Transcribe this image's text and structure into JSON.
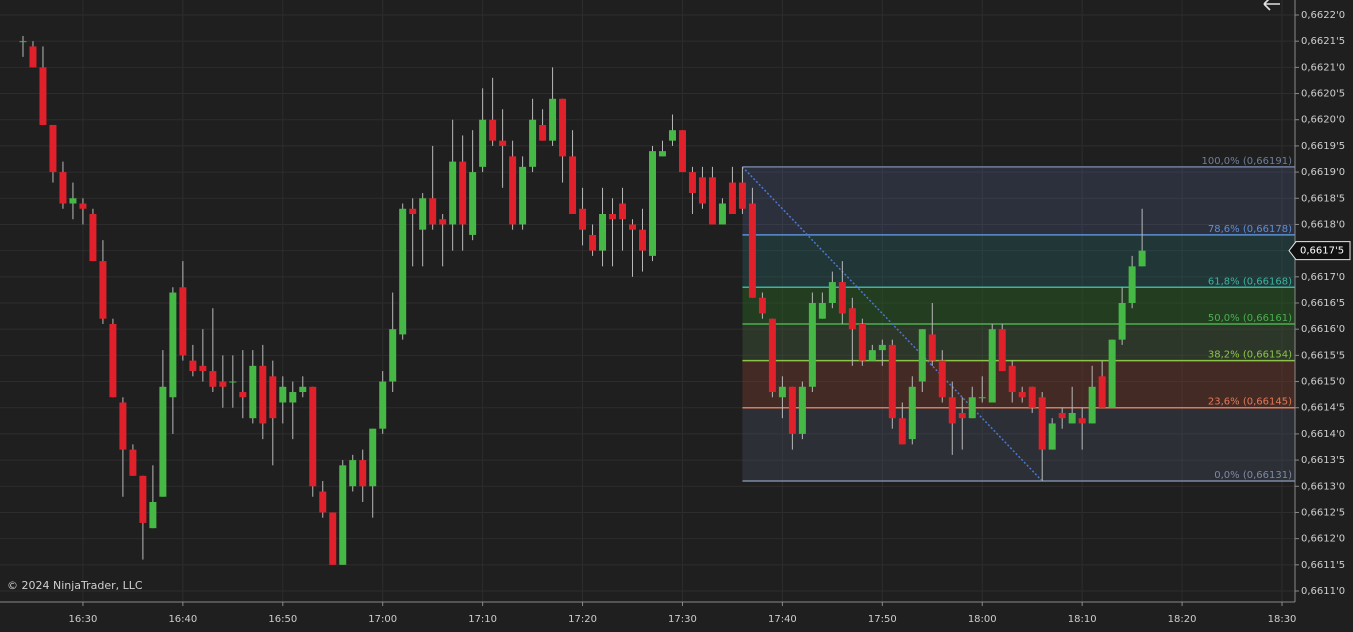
{
  "chart_data": {
    "type": "candlestick",
    "credit": "© 2024 NinjaTrader, LLC",
    "up_color": "#45b845",
    "down_color": "#e0202a",
    "wick_color": "#b8b8b8",
    "grid": true,
    "xlim": [
      "16:22",
      "18:31"
    ],
    "xticks": [
      "16:30",
      "16:40",
      "16:50",
      "17:00",
      "17:10",
      "17:20",
      "17:30",
      "17:40",
      "17:50",
      "18:00",
      "18:10",
      "18:20",
      "18:30"
    ],
    "ylim": [
      0.6611,
      0.6622
    ],
    "yticks": [
      {
        "value": 0.6611,
        "label": "0,6611'0"
      },
      {
        "value": 0.66115,
        "label": "0,6611'5"
      },
      {
        "value": 0.6612,
        "label": "0,6612'0"
      },
      {
        "value": 0.66125,
        "label": "0,6612'5"
      },
      {
        "value": 0.6613,
        "label": "0,6613'0"
      },
      {
        "value": 0.66135,
        "label": "0,6613'5"
      },
      {
        "value": 0.6614,
        "label": "0,6614'0"
      },
      {
        "value": 0.66145,
        "label": "0,6614'5"
      },
      {
        "value": 0.6615,
        "label": "0,6615'0"
      },
      {
        "value": 0.66155,
        "label": "0,6615'5"
      },
      {
        "value": 0.6616,
        "label": "0,6616'0"
      },
      {
        "value": 0.66165,
        "label": "0,6616'5"
      },
      {
        "value": 0.6617,
        "label": "0,6617'0"
      },
      {
        "value": 0.66175,
        "label": "0,6617'5"
      },
      {
        "value": 0.6618,
        "label": "0,6618'0"
      },
      {
        "value": 0.66185,
        "label": "0,6618'5"
      },
      {
        "value": 0.6619,
        "label": "0,6619'0"
      },
      {
        "value": 0.66195,
        "label": "0,6619'5"
      },
      {
        "value": 0.662,
        "label": "0,6620'0"
      },
      {
        "value": 0.66205,
        "label": "0,6620'5"
      },
      {
        "value": 0.6621,
        "label": "0,6621'0"
      },
      {
        "value": 0.66215,
        "label": "0,6621'5"
      },
      {
        "value": 0.6622,
        "label": "0,6622'0"
      }
    ],
    "last_price": {
      "value": 0.66175,
      "label": "0,6617'5"
    },
    "candles": [
      [
        "16:24",
        0.66215,
        0.66216,
        0.66212,
        0.66215
      ],
      [
        "16:25",
        0.66214,
        0.66215,
        0.6621,
        0.6621
      ],
      [
        "16:26",
        0.6621,
        0.66214,
        0.66199,
        0.66199
      ],
      [
        "16:27",
        0.66199,
        0.66199,
        0.66188,
        0.6619
      ],
      [
        "16:28",
        0.6619,
        0.66192,
        0.66183,
        0.66184
      ],
      [
        "16:29",
        0.66184,
        0.66188,
        0.66181,
        0.66185
      ],
      [
        "16:30",
        0.66184,
        0.66185,
        0.6618,
        0.66183
      ],
      [
        "16:31",
        0.66182,
        0.66183,
        0.66173,
        0.66173
      ],
      [
        "16:32",
        0.66173,
        0.66177,
        0.66161,
        0.66162
      ],
      [
        "16:33",
        0.66161,
        0.66162,
        0.66147,
        0.66147
      ],
      [
        "16:34",
        0.66146,
        0.66147,
        0.66128,
        0.66137
      ],
      [
        "16:35",
        0.66137,
        0.66138,
        0.66132,
        0.66132
      ],
      [
        "16:36",
        0.66132,
        0.66132,
        0.66116,
        0.66123
      ],
      [
        "16:37",
        0.66122,
        0.66134,
        0.66122,
        0.66127
      ],
      [
        "16:38",
        0.66128,
        0.66156,
        0.66128,
        0.66149
      ],
      [
        "16:39",
        0.66147,
        0.66168,
        0.6614,
        0.66167
      ],
      [
        "16:40",
        0.66168,
        0.66173,
        0.66154,
        0.66155
      ],
      [
        "16:41",
        0.66154,
        0.66157,
        0.66151,
        0.66152
      ],
      [
        "16:42",
        0.66153,
        0.6616,
        0.6615,
        0.66152
      ],
      [
        "16:43",
        0.66152,
        0.66164,
        0.66148,
        0.66149
      ],
      [
        "16:44",
        0.6615,
        0.66155,
        0.66145,
        0.66149
      ],
      [
        "16:45",
        0.6615,
        0.66155,
        0.66145,
        0.6615
      ],
      [
        "16:46",
        0.66148,
        0.66156,
        0.66143,
        0.66147
      ],
      [
        "16:47",
        0.66143,
        0.66156,
        0.66142,
        0.66153
      ],
      [
        "16:48",
        0.66153,
        0.66157,
        0.66139,
        0.66142
      ],
      [
        "16:49",
        0.66151,
        0.66154,
        0.66134,
        0.66143
      ],
      [
        "16:50",
        0.66146,
        0.66151,
        0.66142,
        0.66149
      ],
      [
        "16:51",
        0.66146,
        0.6615,
        0.66139,
        0.66148
      ],
      [
        "16:52",
        0.66148,
        0.66151,
        0.66147,
        0.66149
      ],
      [
        "16:53",
        0.66149,
        0.66149,
        0.66128,
        0.6613
      ],
      [
        "16:54",
        0.66129,
        0.66131,
        0.66124,
        0.66125
      ],
      [
        "16:55",
        0.66125,
        0.66125,
        0.66115,
        0.66115
      ],
      [
        "16:56",
        0.66115,
        0.66135,
        0.66115,
        0.66134
      ],
      [
        "16:57",
        0.6613,
        0.66136,
        0.66129,
        0.66135
      ],
      [
        "16:58",
        0.66135,
        0.66137,
        0.66127,
        0.6613
      ],
      [
        "16:59",
        0.6613,
        0.66141,
        0.66124,
        0.66141
      ],
      [
        "17:00",
        0.66141,
        0.66152,
        0.6614,
        0.6615
      ],
      [
        "17:01",
        0.6615,
        0.66167,
        0.66148,
        0.6616
      ],
      [
        "17:02",
        0.66159,
        0.66184,
        0.66158,
        0.66183
      ],
      [
        "17:03",
        0.66183,
        0.66185,
        0.66172,
        0.66182
      ],
      [
        "17:04",
        0.66179,
        0.66186,
        0.66172,
        0.66185
      ],
      [
        "17:05",
        0.66185,
        0.66195,
        0.66179,
        0.6618
      ],
      [
        "17:06",
        0.66181,
        0.66182,
        0.66172,
        0.6618
      ],
      [
        "17:07",
        0.6618,
        0.662,
        0.66175,
        0.66192
      ],
      [
        "17:08",
        0.66192,
        0.66197,
        0.66175,
        0.6618
      ],
      [
        "17:09",
        0.66178,
        0.66198,
        0.66177,
        0.6619
      ],
      [
        "17:10",
        0.66191,
        0.66206,
        0.6619,
        0.662
      ],
      [
        "17:11",
        0.662,
        0.66208,
        0.66195,
        0.66196
      ],
      [
        "17:12",
        0.66196,
        0.66202,
        0.66187,
        0.66195
      ],
      [
        "17:13",
        0.66193,
        0.66196,
        0.66179,
        0.6618
      ],
      [
        "17:14",
        0.6618,
        0.66193,
        0.66179,
        0.66191
      ],
      [
        "17:15",
        0.66191,
        0.66204,
        0.6619,
        0.662
      ],
      [
        "17:16",
        0.66199,
        0.66202,
        0.66196,
        0.66196
      ],
      [
        "17:17",
        0.66196,
        0.6621,
        0.66195,
        0.66204
      ],
      [
        "17:18",
        0.66204,
        0.66204,
        0.66188,
        0.66193
      ],
      [
        "17:19",
        0.66193,
        0.66198,
        0.66182,
        0.66182
      ],
      [
        "17:20",
        0.66183,
        0.66187,
        0.66176,
        0.66179
      ],
      [
        "17:21",
        0.66178,
        0.6618,
        0.66174,
        0.66175
      ],
      [
        "17:22",
        0.66175,
        0.66187,
        0.66172,
        0.66182
      ],
      [
        "17:23",
        0.66182,
        0.66185,
        0.66172,
        0.66181
      ],
      [
        "17:24",
        0.66184,
        0.66187,
        0.66175,
        0.66181
      ],
      [
        "17:25",
        0.6618,
        0.66181,
        0.6617,
        0.66179
      ],
      [
        "17:26",
        0.66179,
        0.66183,
        0.66171,
        0.66175
      ],
      [
        "17:27",
        0.66174,
        0.66195,
        0.66173,
        0.66194
      ],
      [
        "17:28",
        0.66193,
        0.66196,
        0.66193,
        0.66194
      ],
      [
        "17:29",
        0.66196,
        0.66201,
        0.66195,
        0.66198
      ],
      [
        "17:30",
        0.66198,
        0.66198,
        0.6619,
        0.6619
      ],
      [
        "17:31",
        0.6619,
        0.66191,
        0.66182,
        0.66186
      ],
      [
        "17:32",
        0.66189,
        0.66191,
        0.66183,
        0.66184
      ],
      [
        "17:33",
        0.66189,
        0.66191,
        0.6618,
        0.6618
      ],
      [
        "17:34",
        0.6618,
        0.66185,
        0.6618,
        0.66184
      ],
      [
        "17:35",
        0.66188,
        0.66191,
        0.66182,
        0.66182
      ],
      [
        "17:36",
        0.66188,
        0.66191,
        0.66182,
        0.66183
      ],
      [
        "17:37",
        0.66184,
        0.66187,
        0.66166,
        0.66166
      ],
      [
        "17:38",
        0.66166,
        0.66167,
        0.66162,
        0.66163
      ],
      [
        "17:39",
        0.66162,
        0.66162,
        0.66147,
        0.66148
      ],
      [
        "17:40",
        0.66147,
        0.66151,
        0.66143,
        0.66149
      ],
      [
        "17:41",
        0.66149,
        0.66149,
        0.66137,
        0.6614
      ],
      [
        "17:42",
        0.6614,
        0.6615,
        0.66139,
        0.66149
      ],
      [
        "17:43",
        0.66149,
        0.66167,
        0.66148,
        0.66165
      ],
      [
        "17:44",
        0.66162,
        0.66167,
        0.66162,
        0.66165
      ],
      [
        "17:45",
        0.66165,
        0.66171,
        0.66164,
        0.66169
      ],
      [
        "17:46",
        0.66169,
        0.66173,
        0.66161,
        0.66163
      ],
      [
        "17:47",
        0.66164,
        0.66166,
        0.66153,
        0.6616
      ],
      [
        "17:48",
        0.66161,
        0.66162,
        0.66153,
        0.66154
      ],
      [
        "17:49",
        0.66154,
        0.66157,
        0.66154,
        0.66156
      ],
      [
        "17:50",
        0.66156,
        0.66158,
        0.66153,
        0.66157
      ],
      [
        "17:51",
        0.66157,
        0.66158,
        0.66141,
        0.66143
      ],
      [
        "17:52",
        0.66143,
        0.66146,
        0.66138,
        0.66138
      ],
      [
        "17:53",
        0.66139,
        0.66151,
        0.66138,
        0.66149
      ],
      [
        "17:54",
        0.6615,
        0.6616,
        0.66148,
        0.6616
      ],
      [
        "17:55",
        0.66159,
        0.66165,
        0.66153,
        0.66154
      ],
      [
        "17:56",
        0.66154,
        0.66156,
        0.66146,
        0.66147
      ],
      [
        "17:57",
        0.66147,
        0.6615,
        0.66136,
        0.66142
      ],
      [
        "17:58",
        0.66144,
        0.66147,
        0.66137,
        0.66143
      ],
      [
        "17:59",
        0.66143,
        0.66149,
        0.66143,
        0.66147
      ],
      [
        "18:00",
        0.66147,
        0.66151,
        0.66146,
        0.66147
      ],
      [
        "18:01",
        0.66146,
        0.66161,
        0.66146,
        0.6616
      ],
      [
        "18:02",
        0.6616,
        0.66161,
        0.66152,
        0.66152
      ],
      [
        "18:03",
        0.66153,
        0.66154,
        0.66146,
        0.66148
      ],
      [
        "18:04",
        0.66148,
        0.66149,
        0.66146,
        0.66147
      ],
      [
        "18:05",
        0.66149,
        0.66149,
        0.66144,
        0.66145
      ],
      [
        "18:06",
        0.66147,
        0.66148,
        0.66131,
        0.66137
      ],
      [
        "18:07",
        0.66137,
        0.66143,
        0.66137,
        0.66142
      ],
      [
        "18:08",
        0.66144,
        0.66145,
        0.66141,
        0.66143
      ],
      [
        "18:09",
        0.66142,
        0.66149,
        0.66142,
        0.66144
      ],
      [
        "18:10",
        0.66143,
        0.66145,
        0.66137,
        0.66142
      ],
      [
        "18:11",
        0.66142,
        0.66153,
        0.66142,
        0.66149
      ],
      [
        "18:12",
        0.66151,
        0.66154,
        0.66145,
        0.66145
      ],
      [
        "18:13",
        0.66145,
        0.66158,
        0.66145,
        0.66158
      ],
      [
        "18:14",
        0.66158,
        0.66168,
        0.66157,
        0.66165
      ],
      [
        "18:15",
        0.66165,
        0.66174,
        0.66164,
        0.66172
      ],
      [
        "18:16",
        0.66172,
        0.66183,
        0.66172,
        0.66175
      ]
    ],
    "fib": {
      "anchors": [
        {
          "time": "17:36",
          "price": 0.66191
        },
        {
          "time": "18:06",
          "price": 0.66131
        }
      ],
      "levels": [
        {
          "price": 0.66191,
          "label": "100,0% (0,66191)",
          "color": "#6f7f9c",
          "fill": "rgba(90,110,170,0.22)"
        },
        {
          "price": 0.66178,
          "label": "78,6% (0,66178)",
          "color": "#5b8fd6",
          "fill": "rgba(40,110,110,0.30)"
        },
        {
          "price": 0.66168,
          "label": "61,8% (0,66168)",
          "color": "#3cb4a0",
          "fill": "rgba(40,110,35,0.38)"
        },
        {
          "price": 0.66161,
          "label": "50,0% (0,66161)",
          "color": "#4caf50",
          "fill": "rgba(70,100,60,0.35)"
        },
        {
          "price": 0.66154,
          "label": "38,2% (0,66154)",
          "color": "#8bc34a",
          "fill": "rgba(130,60,45,0.38)"
        },
        {
          "price": 0.66145,
          "label": "23,6% (0,66145)",
          "color": "#e07a55",
          "fill": "rgba(80,90,110,0.28)"
        },
        {
          "price": 0.66131,
          "label": "0,0% (0,66131)",
          "color": "#7d8aa3",
          "fill": "none"
        }
      ]
    }
  }
}
